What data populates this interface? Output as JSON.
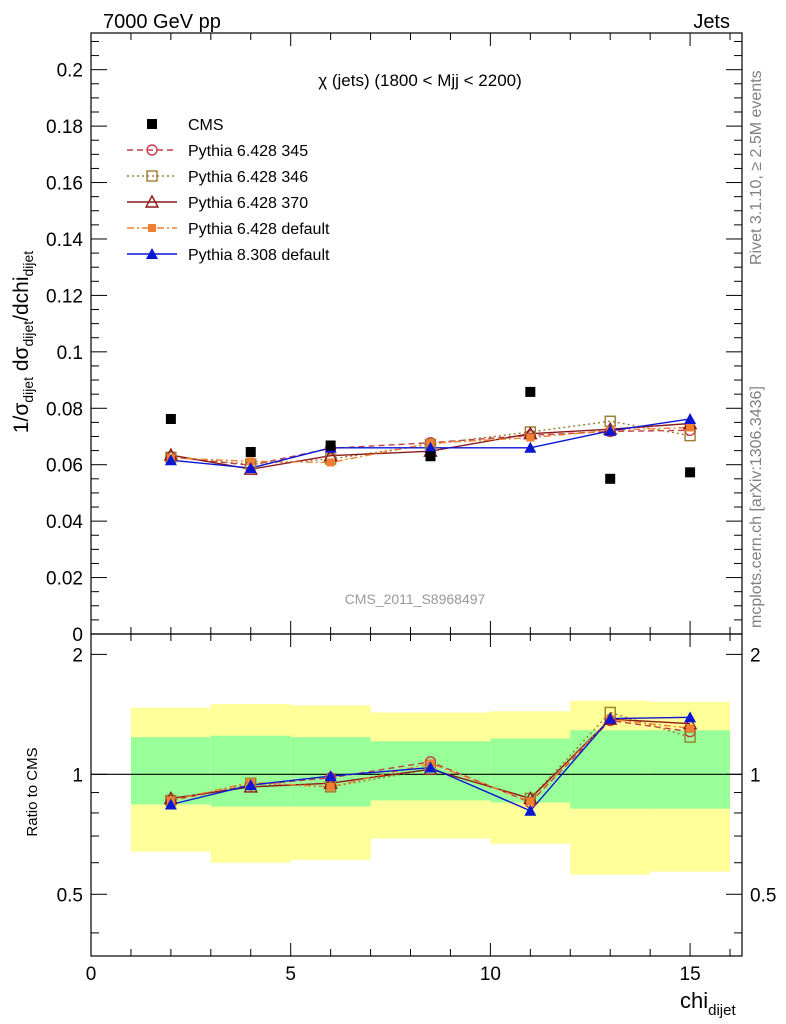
{
  "header": {
    "left": "7000 GeV pp",
    "right": "Jets"
  },
  "side_labels": {
    "rivet": "Rivet 3.1.10, ≥ 2.5M events",
    "mcplots": "mcplots.cern.ch [arXiv:1306.3436]"
  },
  "watermark": "CMS_2011_S8968497",
  "chart_data": {
    "type": "scatter",
    "title": "χ (jets) (1800 < Mjj < 2200)",
    "ylabel_main": "1/σdijet dσdijet/dchidijet",
    "ylabel_ratio": "Ratio to CMS",
    "xlabel": "chi_dijet",
    "xlim": [
      0,
      16.3
    ],
    "ylim_main": [
      0,
      0.213
    ],
    "ylim_ratio": [
      0.35,
      2.25
    ],
    "x_ticks": [
      0,
      5,
      10,
      15
    ],
    "y_ticks_main": [
      "0",
      "0.02",
      "0.04",
      "0.06",
      "0.08",
      "0.1",
      "0.12",
      "0.14",
      "0.16",
      "0.18",
      "0.2"
    ],
    "y_ticks_ratio": [
      "0.5",
      "1",
      "2"
    ],
    "legend_position": "top-left",
    "x": [
      2,
      4,
      6,
      8.5,
      11,
      13,
      15
    ],
    "bins": [
      [
        1,
        3
      ],
      [
        3,
        5
      ],
      [
        5,
        7
      ],
      [
        7,
        10
      ],
      [
        10,
        12
      ],
      [
        12,
        14
      ],
      [
        14,
        16
      ]
    ],
    "data": {
      "name": "CMS",
      "values": [
        0.0762,
        0.0645,
        0.0668,
        0.063,
        0.0858,
        0.055,
        0.0573
      ]
    },
    "band_inner": [
      [
        0.84,
        1.24
      ],
      [
        0.83,
        1.25
      ],
      [
        0.83,
        1.24
      ],
      [
        0.86,
        1.21
      ],
      [
        0.85,
        1.23
      ],
      [
        0.82,
        1.29
      ],
      [
        0.82,
        1.29
      ]
    ],
    "band_outer": [
      [
        0.64,
        1.47
      ],
      [
        0.6,
        1.5
      ],
      [
        0.61,
        1.49
      ],
      [
        0.69,
        1.43
      ],
      [
        0.67,
        1.44
      ],
      [
        0.56,
        1.53
      ],
      [
        0.57,
        1.52
      ]
    ],
    "series": [
      {
        "name": "Pythia 6.428 345",
        "color": "#c33d4a",
        "dash": "6,4",
        "marker": "circle-open",
        "values": [
          0.0628,
          0.0598,
          0.0658,
          0.0678,
          0.0704,
          0.0718,
          0.0722
        ],
        "ratio": [
          0.86,
          0.94,
          0.98,
          1.075,
          0.85,
          1.365,
          1.28
        ]
      },
      {
        "name": "Pythia 6.428 346",
        "color": "#9a7c2e",
        "dash": "2,3",
        "marker": "square-open",
        "values": [
          0.0626,
          0.0602,
          0.062,
          0.0672,
          0.0716,
          0.0754,
          0.0703
        ],
        "ratio": [
          0.86,
          0.95,
          0.93,
          1.03,
          0.87,
          1.43,
          1.24
        ]
      },
      {
        "name": "Pythia 6.428 370",
        "color": "#8b1a1a",
        "dash": "",
        "marker": "triangle-open",
        "values": [
          0.0634,
          0.0584,
          0.0632,
          0.0648,
          0.071,
          0.0726,
          0.0746
        ],
        "ratio": [
          0.87,
          0.93,
          0.95,
          1.03,
          0.87,
          1.375,
          1.34
        ]
      },
      {
        "name": "Pythia 6.428 default",
        "color": "#f08030",
        "dash": "7,3,2,3",
        "marker": "square-filled",
        "values": [
          0.0624,
          0.0612,
          0.0608,
          0.0676,
          0.0696,
          0.0722,
          0.0732
        ],
        "ratio": [
          0.86,
          0.955,
          0.93,
          1.065,
          0.855,
          1.375,
          1.305
        ]
      },
      {
        "name": "Pythia 8.308 default",
        "color": "#0b16d4",
        "dash": "",
        "marker": "triangle-filled",
        "values": [
          0.0616,
          0.0588,
          0.066,
          0.066,
          0.066,
          0.072,
          0.0762
        ],
        "ratio": [
          0.84,
          0.94,
          0.99,
          1.04,
          0.81,
          1.38,
          1.39
        ]
      }
    ]
  }
}
